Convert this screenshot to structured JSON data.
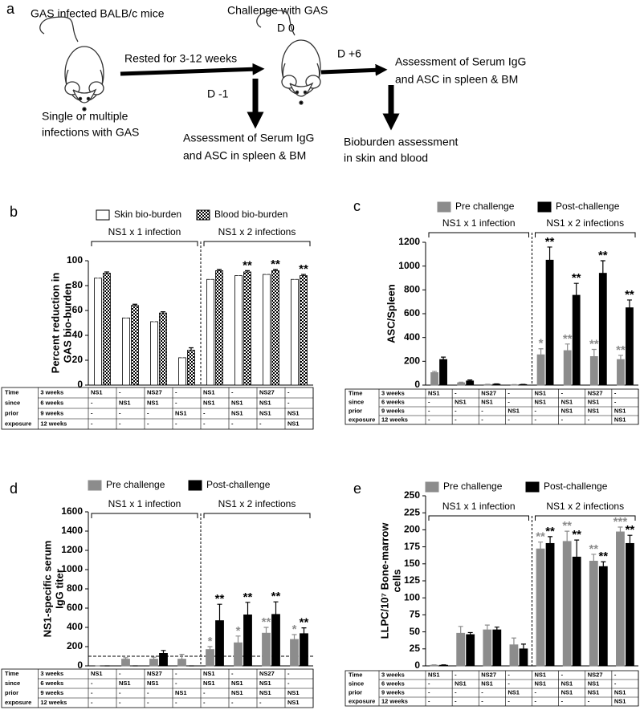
{
  "panel_a": {
    "label": "a",
    "mice_label": "GAS infected BALB/c mice",
    "challenge_label": "Challenge with GAS",
    "day_0": "D 0",
    "rest_label": "Rested for 3-12 weeks",
    "day_minus_1": "D -1",
    "day_plus_6": "D +6",
    "infection_note": [
      "Single or multiple",
      "infections with GAS"
    ],
    "assessment_pre": [
      "Assessment of Serum IgG",
      "and ASC in spleen & BM"
    ],
    "assessment_post": [
      "Assessment of Serum IgG",
      "and ASC in spleen & BM"
    ],
    "bioburden": [
      "Bioburden assessment",
      "in skin and blood"
    ]
  },
  "table": {
    "row_header": [
      "Time",
      "since",
      "prior",
      "exposure"
    ],
    "rows": [
      {
        "label": "3 weeks",
        "cells": [
          "NS1",
          "-",
          "NS27",
          "-",
          "NS1",
          "-",
          "NS27",
          "-"
        ]
      },
      {
        "label": "6 weeks",
        "cells": [
          "-",
          "NS1",
          "NS1",
          "-",
          "NS1",
          "NS1",
          "NS1",
          "-"
        ]
      },
      {
        "label": "9 weeks",
        "cells": [
          "-",
          "-",
          "-",
          "NS1",
          "-",
          "NS1",
          "NS1",
          "NS1"
        ]
      },
      {
        "label": "12 weeks",
        "cells": [
          "-",
          "-",
          "-",
          "-",
          "-",
          "-",
          "-",
          "NS1"
        ]
      }
    ]
  },
  "chart_data": [
    {
      "type": "bar",
      "panel_label": "b",
      "ylabel": [
        "Percent reduction in",
        "GAS bio-burden"
      ],
      "group_labels": [
        "NS1 x 1 infection",
        "NS1 x 2 infections"
      ],
      "categories": [
        null,
        null,
        null,
        null,
        null,
        null,
        null,
        null
      ],
      "series": [
        {
          "name": "Skin bio-burden",
          "color": "#ffffff",
          "annotation_color": "#000000",
          "values": [
            86,
            54,
            51,
            22,
            85,
            88,
            89,
            85
          ],
          "errors": [
            1.5,
            1.5,
            1.5,
            2,
            2,
            1,
            1.5,
            1
          ],
          "annotations": [
            null,
            null,
            null,
            null,
            null,
            null,
            null,
            null
          ]
        },
        {
          "name": "Blood bio-burden",
          "color": "#000000",
          "pattern": "checker",
          "annotation_color": "#000000",
          "values": [
            90,
            64,
            58,
            28,
            92,
            91,
            92,
            88
          ],
          "errors": [
            1,
            1,
            1,
            2,
            1,
            1,
            1,
            1
          ],
          "annotations": [
            null,
            null,
            null,
            null,
            null,
            "**",
            "**",
            "**"
          ]
        }
      ],
      "ylim": [
        0,
        100
      ],
      "yticks": [
        0,
        20,
        40,
        60,
        80,
        100
      ]
    },
    {
      "type": "bar",
      "panel_label": "c",
      "ylabel": [
        "ASC/Spleen"
      ],
      "group_labels": [
        "NS1 x 1 infection",
        "NS1 x 2 infections"
      ],
      "categories": [
        null,
        null,
        null,
        null,
        null,
        null,
        null,
        null
      ],
      "series": [
        {
          "name": "Pre challenge",
          "color": "#8c8c8c",
          "annotation_color": "#8c8c8c",
          "values": [
            105,
            20,
            5,
            3,
            255,
            290,
            240,
            215
          ],
          "errors": [
            10,
            5,
            2,
            1,
            50,
            55,
            60,
            35
          ],
          "annotations": [
            null,
            null,
            null,
            null,
            "*",
            "**",
            "**",
            "**"
          ]
        },
        {
          "name": "Post-challenge",
          "color": "#000000",
          "annotation_color": "#000000",
          "values": [
            215,
            35,
            8,
            5,
            1050,
            755,
            940,
            650
          ],
          "errors": [
            20,
            8,
            2,
            1,
            110,
            100,
            105,
            65
          ],
          "annotations": [
            null,
            null,
            null,
            null,
            "**",
            "**",
            "**",
            "**"
          ]
        }
      ],
      "ylim": [
        0,
        1200
      ],
      "yticks": [
        0,
        200,
        400,
        600,
        800,
        1000,
        1200
      ]
    },
    {
      "type": "bar",
      "panel_label": "d",
      "ylabel": [
        "NS1-specific serum",
        "IgG titer"
      ],
      "group_labels": [
        "NS1 x 1 infection",
        "NS1 x 2 infections"
      ],
      "categories": [
        null,
        null,
        null,
        null,
        null,
        null,
        null,
        null
      ],
      "reference_line": 100,
      "series": [
        {
          "name": "Pre challenge",
          "color": "#8c8c8c",
          "annotation_color": "#8c8c8c",
          "values": [
            0,
            70,
            70,
            70,
            170,
            240,
            340,
            275
          ],
          "errors": [
            0,
            15,
            20,
            50,
            30,
            70,
            60,
            50
          ],
          "annotations": [
            null,
            null,
            null,
            null,
            "*",
            "*",
            "**",
            "*"
          ]
        },
        {
          "name": "Post-challenge",
          "color": "#000000",
          "annotation_color": "#000000",
          "values": [
            0,
            0,
            130,
            0,
            470,
            530,
            535,
            335
          ],
          "errors": [
            0,
            0,
            30,
            0,
            170,
            130,
            130,
            60
          ],
          "annotations": [
            null,
            null,
            null,
            null,
            "**",
            "**",
            "**",
            "**"
          ]
        }
      ],
      "ylim": [
        0,
        1600
      ],
      "yticks": [
        0,
        200,
        400,
        600,
        800,
        1000,
        1200,
        1400,
        1600
      ]
    },
    {
      "type": "bar",
      "panel_label": "e",
      "ylabel": [
        "LLPC/10⁷ Bone-marrow",
        "cells"
      ],
      "group_labels": [
        "NS1 x 1 infection",
        "NS1 x 2 infections"
      ],
      "categories": [
        null,
        null,
        null,
        null,
        null,
        null,
        null,
        null
      ],
      "series": [
        {
          "name": "Pre challenge",
          "color": "#8c8c8c",
          "annotation_color": "#8c8c8c",
          "values": [
            1,
            48,
            53,
            31,
            172,
            183,
            154,
            197
          ],
          "errors": [
            0.5,
            10,
            7,
            10,
            10,
            15,
            10,
            7
          ],
          "annotations": [
            null,
            null,
            null,
            null,
            "**",
            "**",
            "**",
            "***"
          ]
        },
        {
          "name": "Post-challenge",
          "color": "#000000",
          "annotation_color": "#000000",
          "values": [
            1,
            46,
            53,
            25,
            180,
            160,
            146,
            180
          ],
          "errors": [
            0.5,
            3,
            4,
            7,
            10,
            25,
            7,
            12
          ],
          "annotations": [
            null,
            null,
            null,
            null,
            "**",
            "**",
            "**",
            "**"
          ]
        }
      ],
      "ylim": [
        0,
        250
      ],
      "yticks": [
        0,
        25,
        50,
        75,
        100,
        125,
        150,
        175,
        200,
        225,
        250
      ]
    }
  ]
}
